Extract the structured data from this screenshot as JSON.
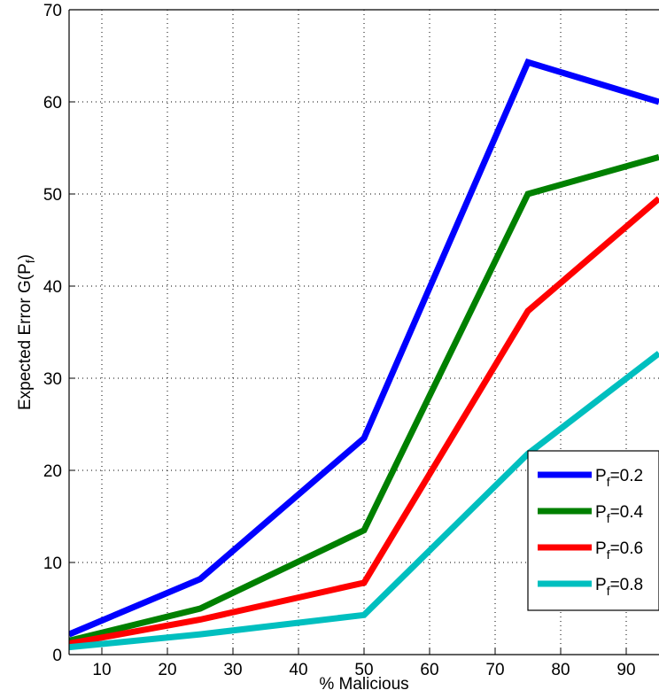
{
  "chart_data": {
    "type": "line",
    "xlabel": "% Malicious",
    "ylabel_main": "Expected Error G(P",
    "ylabel_sub": "f",
    "ylabel_end": ")",
    "xlim": [
      5,
      95
    ],
    "ylim": [
      0,
      70
    ],
    "xticks": [
      10,
      20,
      30,
      40,
      50,
      60,
      70,
      80,
      90
    ],
    "yticks": [
      0,
      10,
      20,
      30,
      40,
      50,
      60,
      70
    ],
    "grid": true,
    "legend_position": "bottom-right",
    "x": [
      5,
      25,
      50,
      75,
      95
    ],
    "series": [
      {
        "name": "P_f=0.2",
        "label_main": "P",
        "label_sub": "f",
        "label_end": "=0.2",
        "color": "#0000ff",
        "values": [
          2.2,
          8.2,
          23.5,
          64.3,
          60.0
        ]
      },
      {
        "name": "P_f=0.4",
        "label_main": "P",
        "label_sub": "f",
        "label_end": "=0.4",
        "color": "#008000",
        "values": [
          1.5,
          5.0,
          13.5,
          50.0,
          54.0
        ]
      },
      {
        "name": "P_f=0.6",
        "label_main": "P",
        "label_sub": "f",
        "label_end": "=0.6",
        "color": "#ff0000",
        "values": [
          1.2,
          3.8,
          7.8,
          37.3,
          49.5
        ]
      },
      {
        "name": "P_f=0.8",
        "label_main": "P",
        "label_sub": "f",
        "label_end": "=0.8",
        "color": "#00bfbf",
        "values": [
          0.8,
          2.2,
          4.3,
          21.8,
          32.7
        ]
      }
    ]
  }
}
